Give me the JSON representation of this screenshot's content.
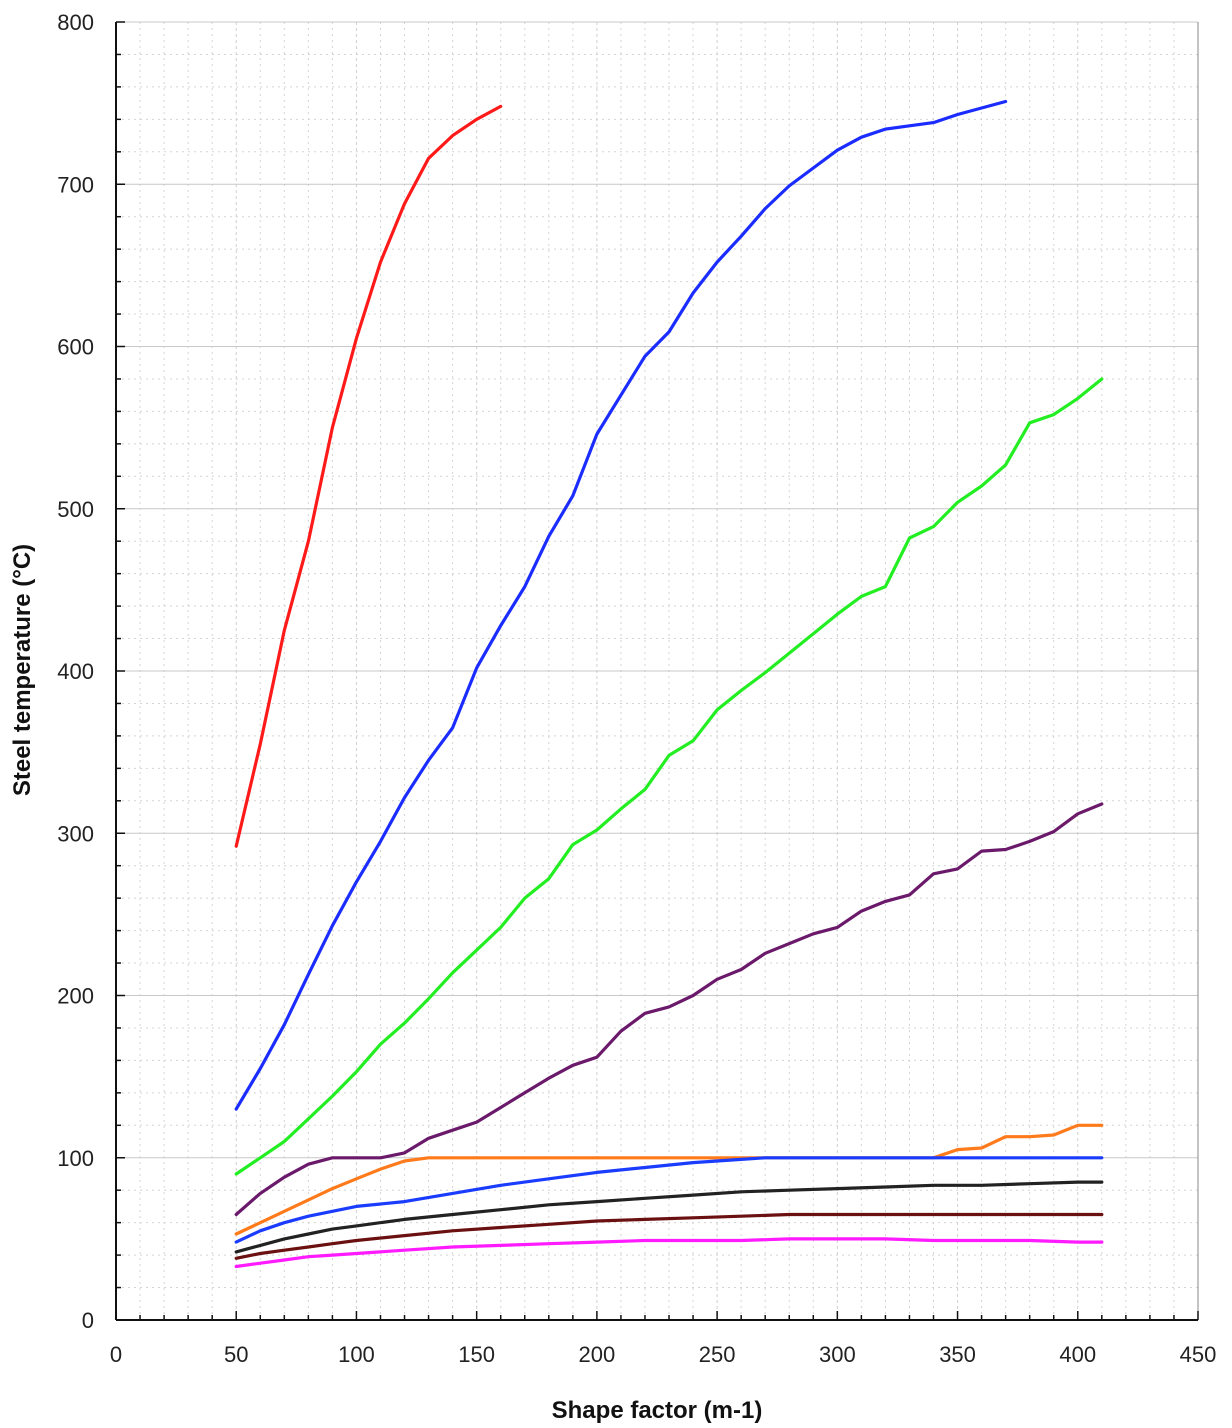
{
  "chart_data": {
    "type": "line",
    "title": "",
    "xlabel": "Shape factor  (m-1)",
    "ylabel": "Steel temperature (°C)",
    "xlim": [
      0,
      450
    ],
    "ylim": [
      0,
      800
    ],
    "xticks": [
      "0",
      "50",
      "100",
      "150",
      "200",
      "250",
      "300",
      "350",
      "400",
      "450"
    ],
    "yticks": [
      "0",
      "100",
      "200",
      "300",
      "400",
      "500",
      "600",
      "700",
      "800"
    ],
    "grid": true,
    "legend": "none",
    "series": [
      {
        "color": "#ff1a1a",
        "x": [
          50,
          60,
          70,
          80,
          90,
          100,
          110,
          120,
          130,
          140,
          150,
          160
        ],
        "y": [
          292,
          355,
          425,
          480,
          550,
          605,
          652,
          688,
          716,
          730,
          740,
          748
        ]
      },
      {
        "color": "#1a2cff",
        "x": [
          50,
          60,
          70,
          80,
          90,
          100,
          110,
          120,
          130,
          140,
          150,
          160,
          170,
          180,
          190,
          200,
          210,
          220,
          230,
          240,
          250,
          260,
          270,
          280,
          290,
          300,
          310,
          320,
          330,
          340,
          350,
          360,
          370
        ],
        "y": [
          130,
          155,
          182,
          213,
          243,
          270,
          295,
          322,
          345,
          365,
          402,
          428,
          452,
          483,
          508,
          546,
          570,
          594,
          609,
          633,
          652,
          668,
          685,
          699,
          710,
          721,
          729,
          734,
          736,
          738,
          743,
          747,
          751
        ]
      },
      {
        "color": "#22ee22",
        "x": [
          50,
          60,
          70,
          80,
          90,
          100,
          110,
          120,
          130,
          140,
          150,
          160,
          170,
          180,
          190,
          200,
          210,
          220,
          230,
          240,
          250,
          260,
          270,
          280,
          290,
          300,
          310,
          320,
          330,
          340,
          350,
          360,
          370,
          380,
          390,
          400,
          410
        ],
        "y": [
          90,
          100,
          110,
          124,
          138,
          153,
          170,
          183,
          198,
          214,
          228,
          242,
          260,
          272,
          293,
          302,
          315,
          327,
          348,
          357,
          376,
          388,
          399,
          411,
          423,
          435,
          446,
          452,
          482,
          489,
          504,
          514,
          527,
          553,
          558,
          568,
          580
        ]
      },
      {
        "color": "#6b1a6b",
        "x": [
          50,
          60,
          70,
          80,
          90,
          100,
          110,
          120,
          130,
          140,
          150,
          160,
          170,
          180,
          190,
          200,
          210,
          220,
          230,
          240,
          250,
          260,
          270,
          280,
          290,
          300,
          310,
          320,
          330,
          340,
          350,
          360,
          370,
          380,
          390,
          400,
          410
        ],
        "y": [
          65,
          78,
          88,
          96,
          100,
          100,
          100,
          103,
          112,
          117,
          122,
          131,
          140,
          149,
          157,
          162,
          178,
          189,
          193,
          200,
          210,
          216,
          226,
          232,
          238,
          242,
          252,
          258,
          262,
          275,
          278,
          289,
          290,
          295,
          301,
          312,
          318
        ]
      },
      {
        "color": "#ff7a1a",
        "x": [
          50,
          60,
          70,
          80,
          90,
          100,
          110,
          120,
          130,
          140,
          150,
          200,
          250,
          300,
          340,
          350,
          360,
          370,
          380,
          390,
          400,
          410
        ],
        "y": [
          53,
          60,
          67,
          74,
          81,
          87,
          93,
          98,
          100,
          100,
          100,
          100,
          100,
          100,
          100,
          105,
          106,
          113,
          113,
          114,
          120,
          120
        ]
      },
      {
        "color": "#1a3cff",
        "x": [
          50,
          60,
          70,
          80,
          90,
          100,
          120,
          140,
          160,
          180,
          200,
          220,
          240,
          260,
          270,
          280,
          300,
          350,
          410
        ],
        "y": [
          48,
          55,
          60,
          64,
          67,
          70,
          73,
          78,
          83,
          87,
          91,
          94,
          97,
          99,
          100,
          100,
          100,
          100,
          100
        ]
      },
      {
        "color": "#222222",
        "x": [
          50,
          60,
          70,
          80,
          90,
          100,
          120,
          140,
          160,
          180,
          200,
          220,
          240,
          260,
          280,
          300,
          320,
          340,
          360,
          380,
          400,
          410
        ],
        "y": [
          42,
          46,
          50,
          53,
          56,
          58,
          62,
          65,
          68,
          71,
          73,
          75,
          77,
          79,
          80,
          81,
          82,
          83,
          83,
          84,
          85,
          85
        ]
      },
      {
        "color": "#6b1010",
        "x": [
          50,
          60,
          70,
          80,
          90,
          100,
          120,
          140,
          160,
          180,
          200,
          220,
          240,
          260,
          280,
          300,
          320,
          340,
          360,
          380,
          400,
          410
        ],
        "y": [
          38,
          41,
          43,
          45,
          47,
          49,
          52,
          55,
          57,
          59,
          61,
          62,
          63,
          64,
          65,
          65,
          65,
          65,
          65,
          65,
          65,
          65
        ]
      },
      {
        "color": "#ff1aff",
        "x": [
          50,
          60,
          70,
          80,
          90,
          100,
          120,
          140,
          160,
          180,
          200,
          220,
          240,
          260,
          280,
          300,
          320,
          340,
          360,
          380,
          400,
          410
        ],
        "y": [
          33,
          35,
          37,
          39,
          40,
          41,
          43,
          45,
          46,
          47,
          48,
          49,
          49,
          49,
          50,
          50,
          50,
          49,
          49,
          49,
          48,
          48
        ]
      }
    ]
  }
}
